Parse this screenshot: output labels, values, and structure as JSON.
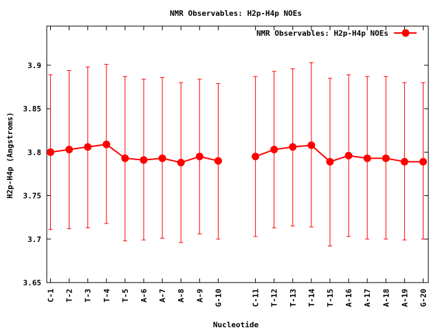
{
  "chart_data": {
    "type": "line",
    "title": "NMR Observables: H2p-H4p NOEs",
    "xlabel": "Nucleotide",
    "ylabel": "H2p-H4p (Angstroms)",
    "ylim": [
      3.65,
      3.945
    ],
    "yticks": [
      "3.65",
      "3.7",
      "3.75",
      "3.8",
      "3.85",
      "3.9"
    ],
    "ytick_values": [
      3.65,
      3.7,
      3.75,
      3.8,
      3.85,
      3.9
    ],
    "grid": false,
    "legend_position": "top-right",
    "series": [
      {
        "name": "NMR Observables: H2p-H4p NOEs",
        "color": "#ff0000",
        "points": [
          {
            "label": "C-1",
            "slot": 1,
            "y": 3.8,
            "lo": 3.711,
            "hi": 3.889
          },
          {
            "label": "T-2",
            "slot": 2,
            "y": 3.803,
            "lo": 3.712,
            "hi": 3.894
          },
          {
            "label": "T-3",
            "slot": 3,
            "y": 3.806,
            "lo": 3.713,
            "hi": 3.898
          },
          {
            "label": "T-4",
            "slot": 4,
            "y": 3.809,
            "lo": 3.718,
            "hi": 3.901
          },
          {
            "label": "T-5",
            "slot": 5,
            "y": 3.793,
            "lo": 3.698,
            "hi": 3.887
          },
          {
            "label": "A-6",
            "slot": 6,
            "y": 3.791,
            "lo": 3.699,
            "hi": 3.884
          },
          {
            "label": "A-7",
            "slot": 7,
            "y": 3.793,
            "lo": 3.701,
            "hi": 3.886
          },
          {
            "label": "A-8",
            "slot": 8,
            "y": 3.788,
            "lo": 3.696,
            "hi": 3.88
          },
          {
            "label": "A-9",
            "slot": 9,
            "y": 3.795,
            "lo": 3.706,
            "hi": 3.884
          },
          {
            "label": "G-10",
            "slot": 10,
            "y": 3.79,
            "lo": 3.7,
            "hi": 3.879
          },
          {
            "label": "C-11",
            "slot": 12,
            "y": 3.795,
            "lo": 3.703,
            "hi": 3.887
          },
          {
            "label": "T-12",
            "slot": 13,
            "y": 3.803,
            "lo": 3.713,
            "hi": 3.893
          },
          {
            "label": "T-13",
            "slot": 14,
            "y": 3.806,
            "lo": 3.715,
            "hi": 3.896
          },
          {
            "label": "T-14",
            "slot": 15,
            "y": 3.808,
            "lo": 3.714,
            "hi": 3.903
          },
          {
            "label": "T-15",
            "slot": 16,
            "y": 3.789,
            "lo": 3.692,
            "hi": 3.885
          },
          {
            "label": "A-16",
            "slot": 17,
            "y": 3.796,
            "lo": 3.703,
            "hi": 3.889
          },
          {
            "label": "A-17",
            "slot": 18,
            "y": 3.793,
            "lo": 3.7,
            "hi": 3.887
          },
          {
            "label": "A-18",
            "slot": 19,
            "y": 3.793,
            "lo": 3.7,
            "hi": 3.887
          },
          {
            "label": "A-19",
            "slot": 20,
            "y": 3.789,
            "lo": 3.699,
            "hi": 3.88
          },
          {
            "label": "G-20",
            "slot": 21,
            "y": 3.789,
            "lo": 3.7,
            "hi": 3.88
          }
        ]
      }
    ]
  }
}
